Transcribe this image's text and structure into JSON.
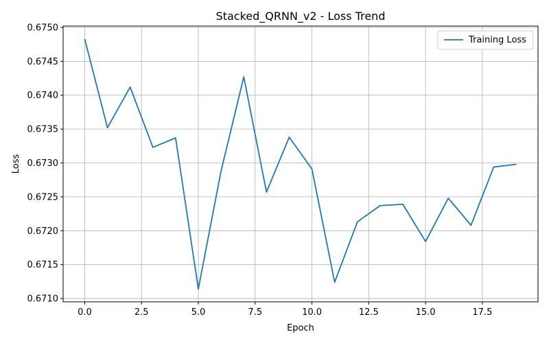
{
  "chart_data": {
    "type": "line",
    "title": "Stacked_QRNN_v2 - Loss Trend",
    "xlabel": "Epoch",
    "ylabel": "Loss",
    "xlim": [
      -0.95,
      19.95
    ],
    "ylim": [
      0.67095,
      0.67502
    ],
    "x_ticks": [
      0.0,
      2.5,
      5.0,
      7.5,
      10.0,
      12.5,
      15.0,
      17.5
    ],
    "x_tick_labels": [
      "0.0",
      "2.5",
      "5.0",
      "7.5",
      "10.0",
      "12.5",
      "15.0",
      "17.5"
    ],
    "y_ticks": [
      0.671,
      0.6715,
      0.672,
      0.6725,
      0.673,
      0.6735,
      0.674,
      0.6745,
      0.675
    ],
    "y_tick_labels": [
      "0.6710",
      "0.6715",
      "0.6720",
      "0.6725",
      "0.6730",
      "0.6735",
      "0.6740",
      "0.6745",
      "0.6750"
    ],
    "grid": true,
    "legend_position": "top-right",
    "series": [
      {
        "name": "Training Loss",
        "color": "#1f77b4",
        "x": [
          0,
          1,
          2,
          3,
          4,
          5,
          6,
          7,
          8,
          9,
          10,
          11,
          12,
          13,
          14,
          15,
          16,
          17,
          18,
          19
        ],
        "values": [
          0.67483,
          0.67352,
          0.67412,
          0.67323,
          0.67337,
          0.67114,
          0.67288,
          0.67427,
          0.67257,
          0.67338,
          0.67291,
          0.67124,
          0.67213,
          0.67237,
          0.67239,
          0.67184,
          0.67248,
          0.67208,
          0.67294,
          0.67298
        ]
      }
    ]
  }
}
